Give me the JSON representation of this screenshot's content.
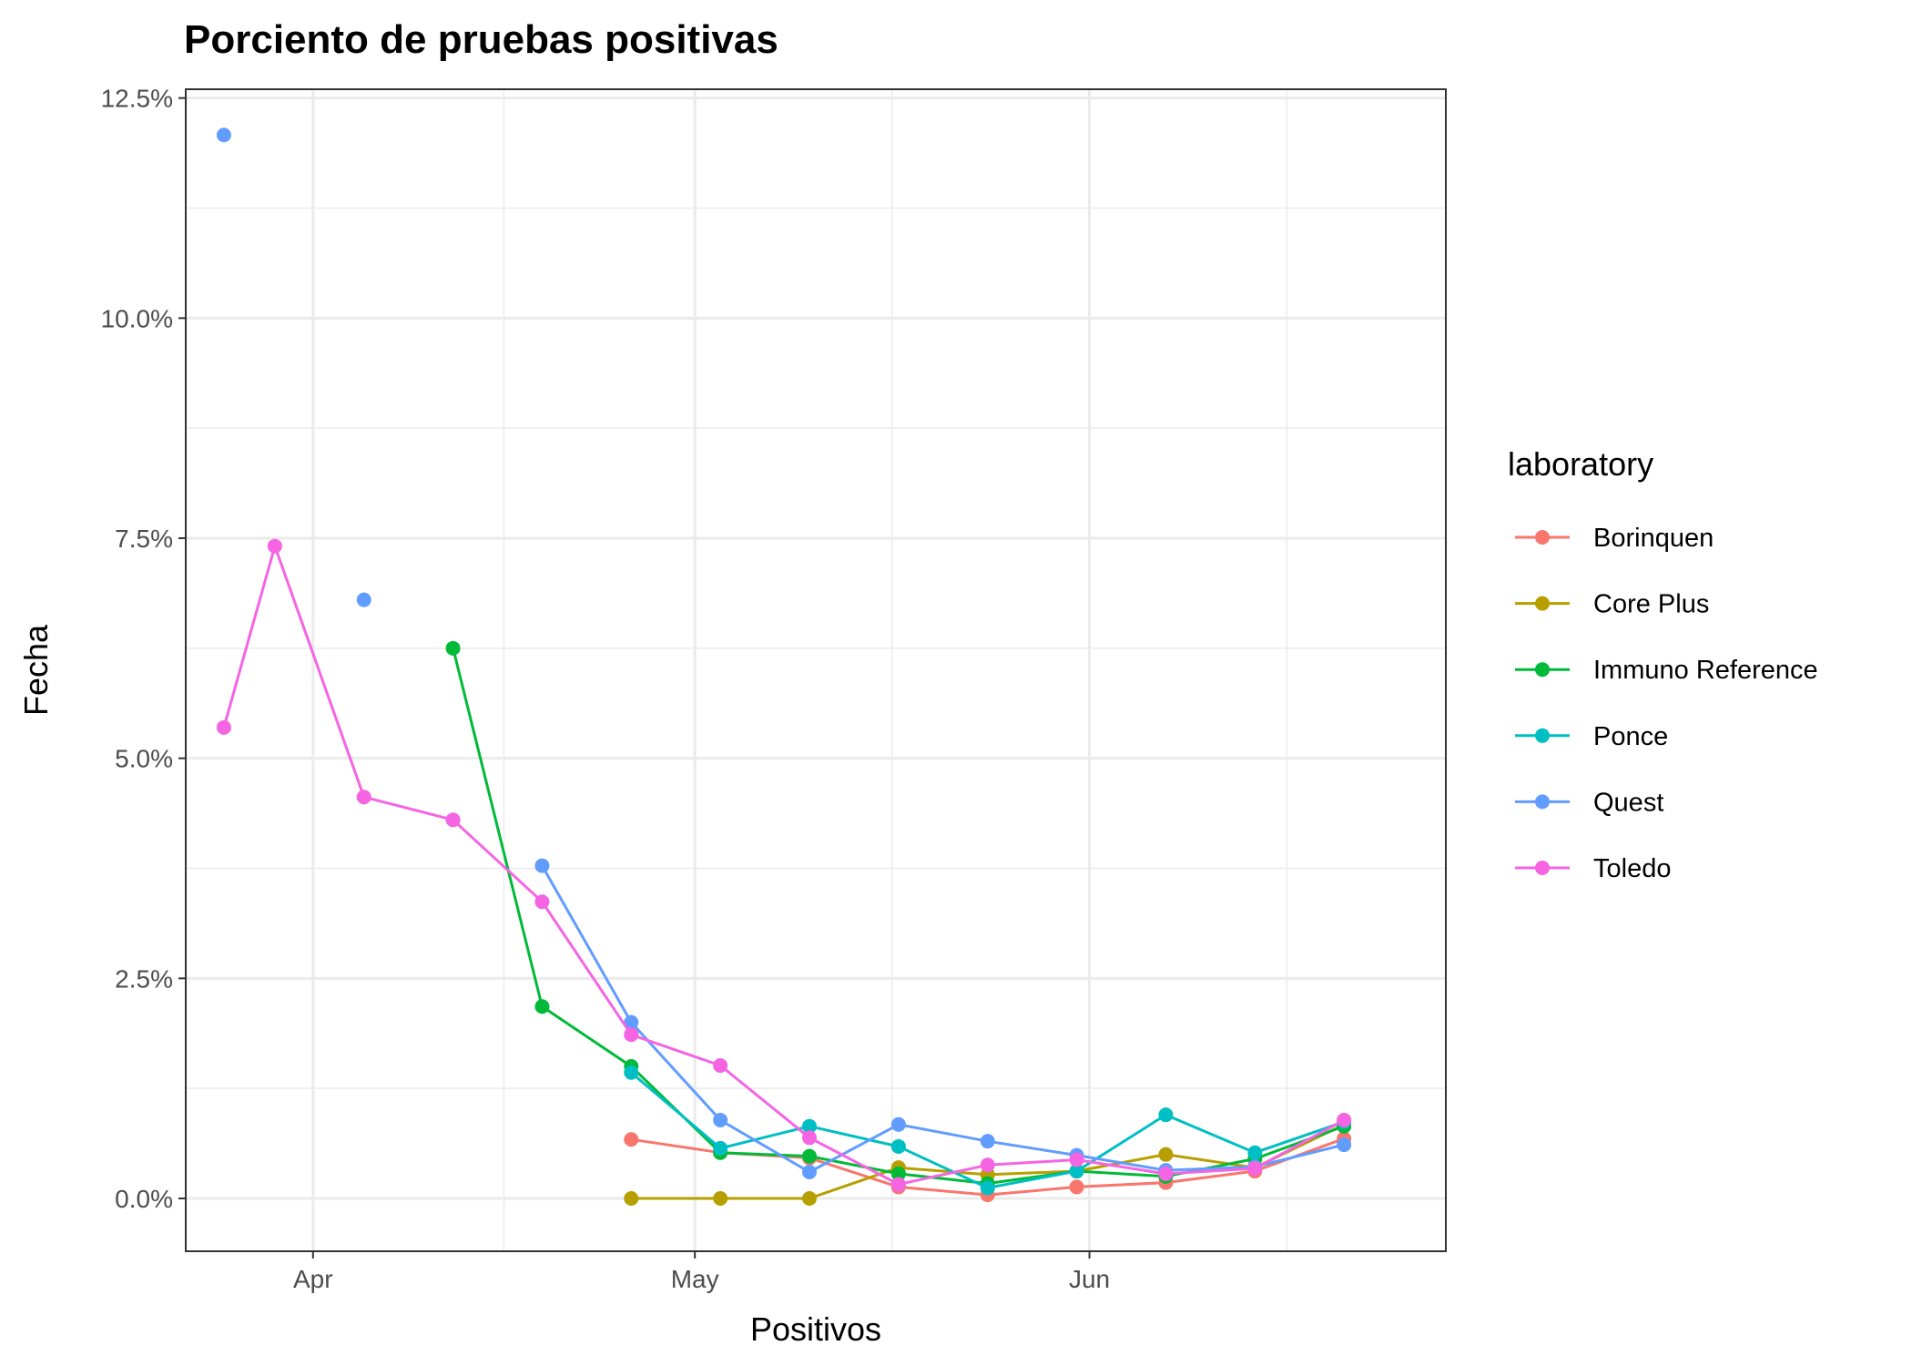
{
  "chart_data": {
    "type": "line",
    "title": "Porciento de pruebas positivas",
    "xlabel": "Positivos",
    "ylabel": "Fecha",
    "x_axis": {
      "kind": "date",
      "range": [
        "2020-03-22",
        "2020-06-29"
      ],
      "ticks": [
        {
          "value": "2020-04-01",
          "label": "Apr"
        },
        {
          "value": "2020-05-01",
          "label": "May"
        },
        {
          "value": "2020-06-01",
          "label": "Jun"
        }
      ]
    },
    "y_axis": {
      "unit": "percent",
      "range": [
        -0.6,
        12.6
      ],
      "ticks": [
        {
          "value": 0,
          "label": "0.0%"
        },
        {
          "value": 2.5,
          "label": "2.5%"
        },
        {
          "value": 5,
          "label": "5.0%"
        },
        {
          "value": 7.5,
          "label": "7.5%"
        },
        {
          "value": 10,
          "label": "10.0%"
        },
        {
          "value": 12.5,
          "label": "12.5%"
        }
      ]
    },
    "grid": true,
    "legend": {
      "title": "laboratory",
      "position": "right"
    },
    "series": [
      {
        "name": "Borinquen",
        "color": "#F8766D",
        "points": [
          [
            "2020-04-26",
            0.67
          ],
          [
            "2020-05-03",
            0.52
          ],
          [
            "2020-05-10",
            0.46
          ],
          [
            "2020-05-17",
            0.13
          ],
          [
            "2020-05-24",
            0.04
          ],
          [
            "2020-05-31",
            0.13
          ],
          [
            "2020-06-07",
            0.18
          ],
          [
            "2020-06-14",
            0.31
          ],
          [
            "2020-06-21",
            0.68
          ]
        ]
      },
      {
        "name": "Core Plus",
        "color": "#B79F00",
        "points": [
          [
            "2020-04-26",
            0.0
          ],
          [
            "2020-05-03",
            0.0
          ],
          [
            "2020-05-10",
            0.0
          ],
          [
            "2020-05-17",
            0.35
          ],
          [
            "2020-05-24",
            0.27
          ],
          [
            "2020-05-31",
            0.31
          ],
          [
            "2020-06-07",
            0.5
          ],
          [
            "2020-06-14",
            0.35
          ],
          [
            "2020-06-21",
            0.84
          ]
        ]
      },
      {
        "name": "Immuno Reference",
        "color": "#00BA38",
        "points": [
          [
            "2020-04-12",
            6.25
          ],
          [
            "2020-04-19",
            2.18
          ],
          [
            "2020-04-26",
            1.5
          ],
          [
            "2020-05-03",
            0.52
          ],
          [
            "2020-05-10",
            0.48
          ],
          [
            "2020-05-17",
            0.28
          ],
          [
            "2020-05-24",
            0.17
          ],
          [
            "2020-05-31",
            0.31
          ],
          [
            "2020-06-07",
            0.25
          ],
          [
            "2020-06-14",
            0.45
          ],
          [
            "2020-06-21",
            0.82
          ]
        ]
      },
      {
        "name": "Ponce",
        "color": "#00BFC4",
        "points": [
          [
            "2020-04-26",
            1.43
          ],
          [
            "2020-05-03",
            0.57
          ],
          [
            "2020-05-10",
            0.82
          ],
          [
            "2020-05-17",
            0.59
          ],
          [
            "2020-05-24",
            0.12
          ],
          [
            "2020-05-31",
            0.31
          ],
          [
            "2020-06-07",
            0.95
          ],
          [
            "2020-06-14",
            0.52
          ],
          [
            "2020-06-21",
            0.87
          ]
        ]
      },
      {
        "name": "Quest",
        "color": "#619CFF",
        "points": [
          [
            "2020-03-25",
            12.08
          ],
          null,
          [
            "2020-04-05",
            6.8
          ],
          null,
          [
            "2020-04-19",
            3.78
          ],
          [
            "2020-04-26",
            2.0
          ],
          [
            "2020-05-03",
            0.89
          ],
          [
            "2020-05-10",
            0.3
          ],
          [
            "2020-05-17",
            0.84
          ],
          [
            "2020-05-24",
            0.65
          ],
          [
            "2020-05-31",
            0.49
          ],
          [
            "2020-06-07",
            0.32
          ],
          [
            "2020-06-14",
            0.36
          ],
          [
            "2020-06-21",
            0.61
          ]
        ]
      },
      {
        "name": "Toledo",
        "color": "#F564E3",
        "points": [
          [
            "2020-03-25",
            5.35
          ],
          [
            "2020-03-29",
            7.41
          ],
          [
            "2020-04-05",
            4.56
          ],
          [
            "2020-04-12",
            4.3
          ],
          [
            "2020-04-19",
            3.37
          ],
          [
            "2020-04-26",
            1.86
          ],
          [
            "2020-05-03",
            1.51
          ],
          [
            "2020-05-10",
            0.69
          ],
          [
            "2020-05-17",
            0.16
          ],
          [
            "2020-05-24",
            0.38
          ],
          [
            "2020-05-31",
            0.44
          ],
          [
            "2020-06-07",
            0.28
          ],
          [
            "2020-06-14",
            0.34
          ],
          [
            "2020-06-21",
            0.89
          ]
        ]
      }
    ]
  }
}
